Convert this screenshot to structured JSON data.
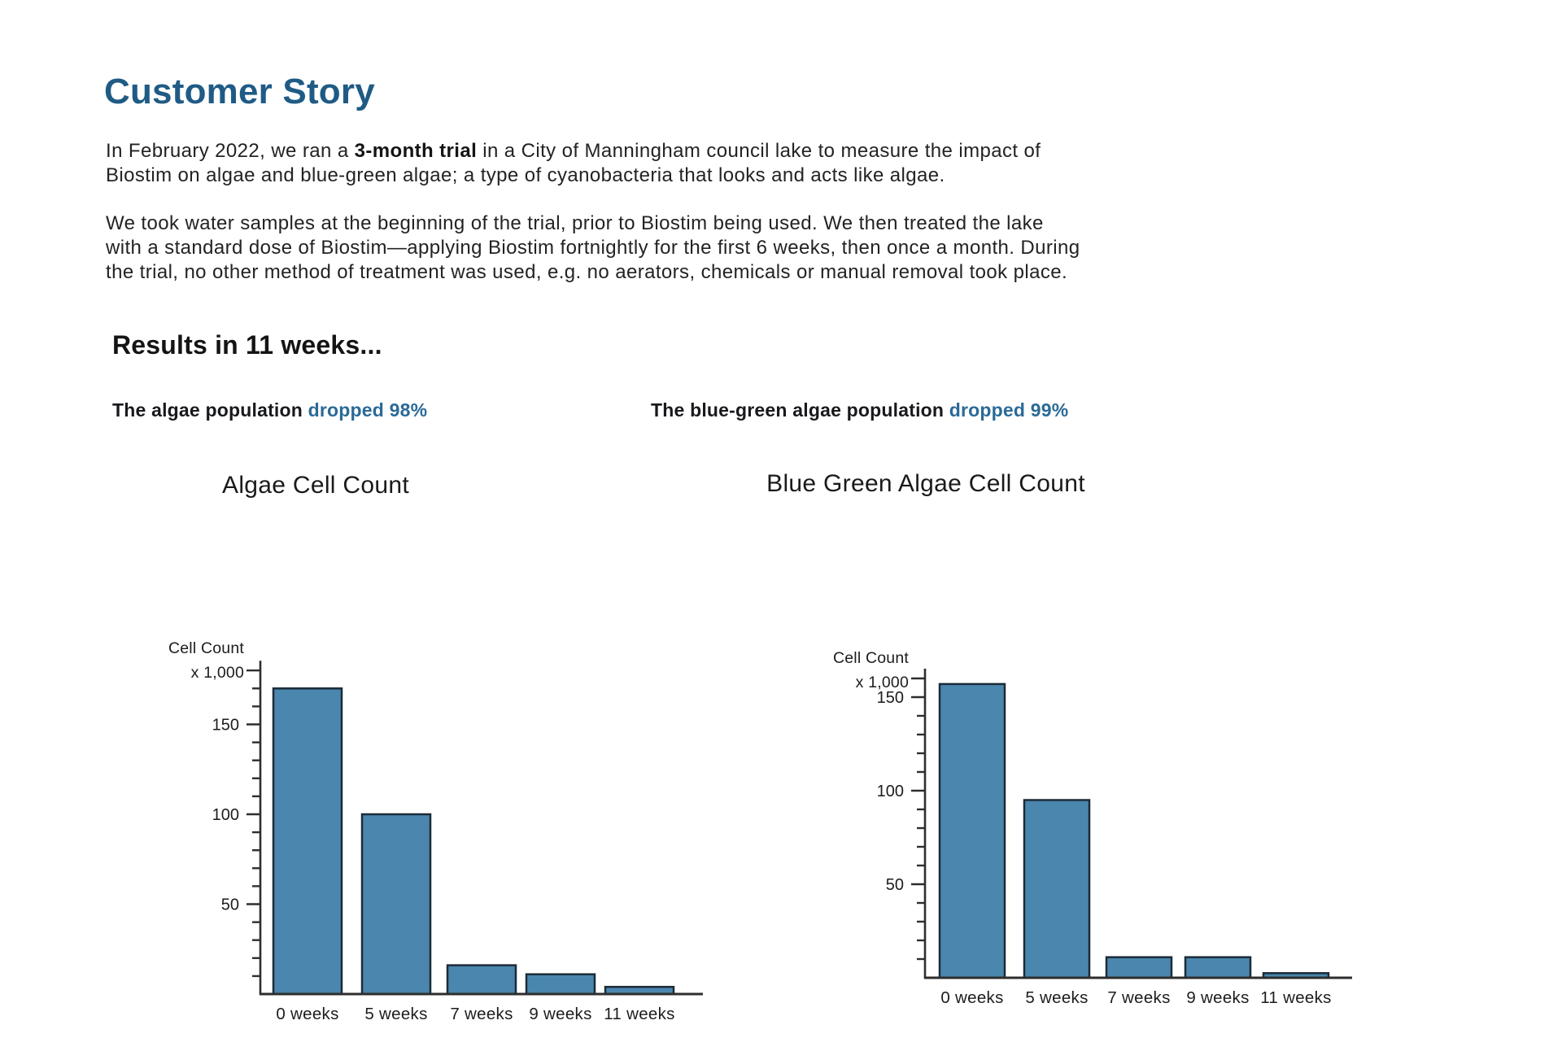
{
  "page": {
    "title": "Customer Story",
    "paragraph1": {
      "line1_before": "In February 2022, we ran a ",
      "line1_bold": "3-month trial",
      "line1_after": " in a City of Manningham council lake to measure the impact of",
      "line2": "Biostim on algae and blue-green algae; a type of cyanobacteria that looks and acts like algae."
    },
    "paragraph2_lines": [
      "We took water samples at the beginning of the trial, prior to Biostim being used. We then treated the lake",
      "with a standard dose of Biostim—applying Biostim fortnightly for the first 6 weeks, then once a month. During",
      "the trial, no other method of treatment was used, e.g. no aerators, chemicals or manual removal took place."
    ],
    "results_heading": "Results in 11 weeks...",
    "captions": {
      "left_prefix": "The algae population ",
      "left_highlight": "dropped 98%",
      "right_prefix": "The blue-green algae population ",
      "right_highlight": "dropped 99%"
    },
    "colors": {
      "accent_heading": "#1f5b85",
      "caption_highlight": "#2a6a97",
      "bar_fill": "#4a86ad",
      "bar_stroke": "#1c2b38",
      "axis": "#2e2e2e"
    }
  },
  "chart_data": [
    {
      "type": "bar",
      "title": "Algae Cell Count",
      "ylabel_line1": "Cell Count",
      "ylabel_line2": "x 1,000",
      "categories": [
        "0 weeks",
        "5 weeks",
        "7 weeks",
        "9 weeks",
        "11 weeks"
      ],
      "values": [
        170,
        100,
        16,
        11,
        4
      ],
      "yticks_labeled": [
        50,
        100,
        150
      ],
      "ytick_step": 10,
      "ylim": [
        0,
        180
      ],
      "grid": false,
      "legend": "none"
    },
    {
      "type": "bar",
      "title": "Blue Green Algae Cell Count",
      "ylabel_line1": "Cell Count",
      "ylabel_line2": "x 1,000",
      "categories": [
        "0 weeks",
        "5 weeks",
        "7 weeks",
        "9 weeks",
        "11 weeks"
      ],
      "values": [
        157,
        95,
        11,
        11,
        2.5
      ],
      "yticks_labeled": [
        50,
        100,
        150
      ],
      "ytick_step": 10,
      "ylim": [
        0,
        160
      ],
      "grid": false,
      "legend": "none"
    }
  ]
}
